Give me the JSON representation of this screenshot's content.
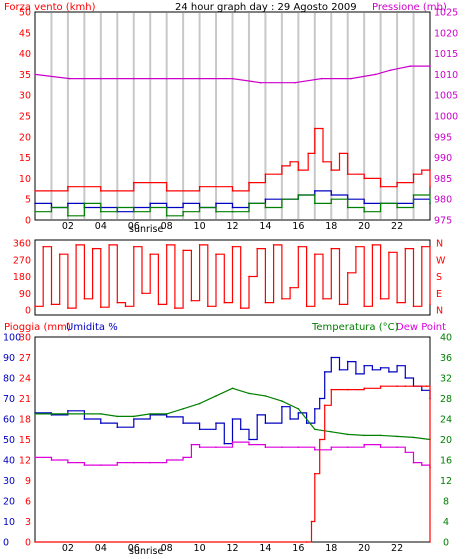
{
  "chart_data": [
    {
      "type": "line",
      "panel": "wind-pressure",
      "title": "24 hour graph day : 29 Agosto 2009",
      "left_label": "Forza vento (kmh)",
      "right_label": "Pressione (mb)",
      "left_ticks": [
        "50",
        "45",
        "40",
        "35",
        "30",
        "25",
        "20",
        "15",
        "10",
        "5",
        "0"
      ],
      "right_ticks": [
        "1025",
        "1020",
        "1015",
        "1010",
        "1005",
        "1000",
        "995",
        "990",
        "985",
        "980",
        "975"
      ],
      "left_range": [
        0,
        50
      ],
      "right_range": [
        975,
        1025
      ],
      "hour_labels": [
        "02",
        "04",
        "06",
        "08",
        "10",
        "12",
        "14",
        "16",
        "18",
        "20",
        "22"
      ],
      "sunrise_label": "sunrise",
      "grid": "vertical",
      "colors": {
        "gust": "#ff0000",
        "average": "#0000c0",
        "speed": "#008000",
        "pressure": "#cc00cc",
        "gridline": "#c8c8c8"
      },
      "series": [
        {
          "key": "pressure",
          "hours": [
            0,
            2.1,
            4,
            6,
            8,
            10,
            12,
            13.7,
            15.8,
            17.4,
            19.2,
            20.7,
            21.6,
            22.8,
            24
          ],
          "values": [
            1010,
            1009,
            1009,
            1009,
            1009,
            1009,
            1009,
            1008,
            1008,
            1009,
            1009,
            1010,
            1011,
            1012,
            1012
          ]
        },
        {
          "key": "gust",
          "hours": [
            0,
            2,
            4,
            6,
            8,
            10,
            12,
            13,
            14,
            15,
            15.5,
            16,
            16.6,
            17,
            17.5,
            18,
            18.5,
            19,
            20,
            21,
            22,
            23,
            23.5,
            24
          ],
          "values": [
            7,
            8,
            7,
            9,
            7,
            8,
            7,
            9,
            11,
            13,
            14,
            12,
            16,
            22,
            14,
            12,
            16,
            11,
            10,
            8,
            9,
            11,
            12,
            8
          ]
        },
        {
          "key": "average",
          "hours": [
            0,
            1,
            2,
            3,
            4,
            5,
            6,
            7,
            8,
            9,
            10,
            11,
            12,
            13,
            14,
            15,
            16,
            17,
            18,
            19,
            20,
            21,
            22,
            23,
            24
          ],
          "values": [
            4,
            3,
            4,
            3,
            3,
            2,
            3,
            4,
            3,
            4,
            3,
            4,
            3,
            4,
            5,
            5,
            6,
            7,
            6,
            5,
            4,
            4,
            4,
            5,
            4
          ]
        },
        {
          "key": "speed",
          "hours": [
            0,
            1,
            2,
            3,
            4,
            5,
            6,
            7,
            8,
            9,
            10,
            11,
            12,
            13,
            14,
            15,
            16,
            17,
            18,
            19,
            20,
            21,
            22,
            23,
            24
          ],
          "values": [
            2,
            3,
            1,
            4,
            2,
            3,
            2,
            3,
            1,
            2,
            3,
            2,
            2,
            4,
            3,
            5,
            6,
            4,
            5,
            3,
            2,
            4,
            3,
            6,
            4
          ]
        }
      ]
    },
    {
      "type": "line",
      "panel": "wind-direction",
      "left_ticks": [
        "360",
        "270",
        "180",
        "90",
        "0"
      ],
      "right_ticks": [
        "N",
        "W",
        "S",
        "E",
        "N"
      ],
      "left_range": [
        0,
        360
      ],
      "hour_labels": [],
      "colors": {
        "direction": "#ff0000"
      },
      "series": [
        {
          "key": "direction",
          "hours": [
            0,
            0.5,
            1,
            1.5,
            2,
            2.5,
            3,
            3.5,
            4,
            4.5,
            5,
            5.5,
            6,
            6.5,
            7,
            7.5,
            8,
            8.5,
            9,
            9.5,
            10,
            10.5,
            11,
            11.5,
            12,
            12.5,
            13,
            13.5,
            14,
            14.5,
            15,
            15.5,
            16,
            16.5,
            17,
            17.5,
            18,
            18.5,
            19,
            19.5,
            20,
            20.5,
            21,
            21.5,
            22,
            22.5,
            23,
            23.5,
            24
          ],
          "values": [
            20,
            340,
            30,
            300,
            10,
            350,
            60,
            330,
            15,
            350,
            40,
            20,
            340,
            90,
            300,
            30,
            350,
            10,
            320,
            50,
            350,
            20,
            300,
            40,
            340,
            10,
            180,
            330,
            40,
            350,
            60,
            120,
            340,
            20,
            300,
            60,
            330,
            30,
            200,
            340,
            20,
            350,
            60,
            310,
            40,
            330,
            20,
            340,
            30
          ]
        }
      ]
    },
    {
      "type": "line",
      "panel": "rain-humidity-temperature",
      "left_label_rain": "Pioggia (mm)",
      "left_label_humidity": "Umidita %",
      "right_label_temperature": "Temperatura (°C)",
      "right_label_dewpoint": "Dew Point",
      "left_ticks_rain": [
        "30",
        "27",
        "24",
        "21",
        "18",
        "15",
        "12",
        "9",
        "6",
        "3",
        "0"
      ],
      "left_ticks_humidity": [
        "100",
        "90",
        "80",
        "70",
        "60",
        "50",
        "40",
        "30",
        "20",
        "10",
        "0"
      ],
      "right_ticks": [
        "40",
        "36",
        "32",
        "28",
        "24",
        "20",
        "16",
        "12",
        "8",
        "4",
        "0"
      ],
      "rain_range": [
        0,
        30
      ],
      "humidity_range": [
        0,
        100
      ],
      "temperature_range": [
        0,
        40
      ],
      "hour_labels": [
        "02",
        "04",
        "06",
        "08",
        "10",
        "12",
        "14",
        "16",
        "18",
        "20",
        "22"
      ],
      "sunrise_label": "sunrise",
      "colors": {
        "humidity": "#0000c0",
        "temperature": "#008000",
        "dewpoint": "#dd00dd",
        "rain": "#ff0000"
      },
      "series": [
        {
          "key": "humidity",
          "hours": [
            0,
            1,
            2,
            3,
            4,
            5,
            6,
            7,
            8,
            9,
            10,
            11,
            11.5,
            12,
            12.5,
            13,
            13.5,
            14,
            15,
            15.5,
            16,
            16.5,
            17,
            17.3,
            17.6,
            18,
            18.5,
            19,
            19.5,
            20,
            20.5,
            21,
            21.5,
            22,
            22.5,
            23,
            23.5,
            24
          ],
          "values": [
            63,
            62,
            64,
            60,
            58,
            56,
            60,
            62,
            61,
            58,
            55,
            58,
            48,
            60,
            55,
            50,
            62,
            58,
            66,
            60,
            63,
            58,
            65,
            70,
            83,
            90,
            84,
            88,
            82,
            86,
            84,
            85,
            83,
            86,
            80,
            76,
            74,
            70
          ]
        },
        {
          "key": "temperature",
          "hours": [
            0,
            1,
            2,
            3,
            4,
            5,
            6,
            7,
            8,
            9,
            10,
            11,
            12,
            13,
            14,
            15,
            16,
            17,
            18,
            19,
            20,
            21,
            22,
            23,
            24
          ],
          "values": [
            25,
            25,
            25,
            25,
            25,
            24.5,
            24.5,
            25,
            25,
            26,
            27,
            28.5,
            30,
            29,
            28.5,
            27.5,
            26,
            22,
            21.5,
            21,
            20.8,
            20.8,
            20.6,
            20.4,
            20
          ]
        },
        {
          "key": "dewpoint",
          "hours": [
            0,
            1,
            2,
            3,
            4,
            5,
            6,
            7,
            8,
            9,
            9.5,
            10,
            11,
            12,
            13,
            14,
            15,
            16,
            17,
            18,
            19,
            20,
            21,
            22,
            22.5,
            23,
            23.5,
            24
          ],
          "values": [
            16.5,
            16,
            15.5,
            15,
            15,
            15.5,
            15.5,
            15.5,
            16,
            16.5,
            19,
            18.5,
            18.5,
            19.5,
            19,
            18.5,
            18.5,
            18.5,
            18,
            18.5,
            18.5,
            19,
            18.5,
            18.5,
            17.5,
            15.5,
            15,
            14.5
          ]
        },
        {
          "key": "rain",
          "hours": [
            0,
            16.5,
            16.8,
            17,
            17.3,
            17.6,
            18,
            19,
            20,
            21,
            22,
            22.5,
            23,
            23.5,
            23.8,
            24
          ],
          "values": [
            0,
            0,
            3,
            10,
            15,
            20,
            22.3,
            22.3,
            22.5,
            22.8,
            22.8,
            22.8,
            22.8,
            22.8,
            22.8,
            0
          ]
        }
      ]
    }
  ]
}
